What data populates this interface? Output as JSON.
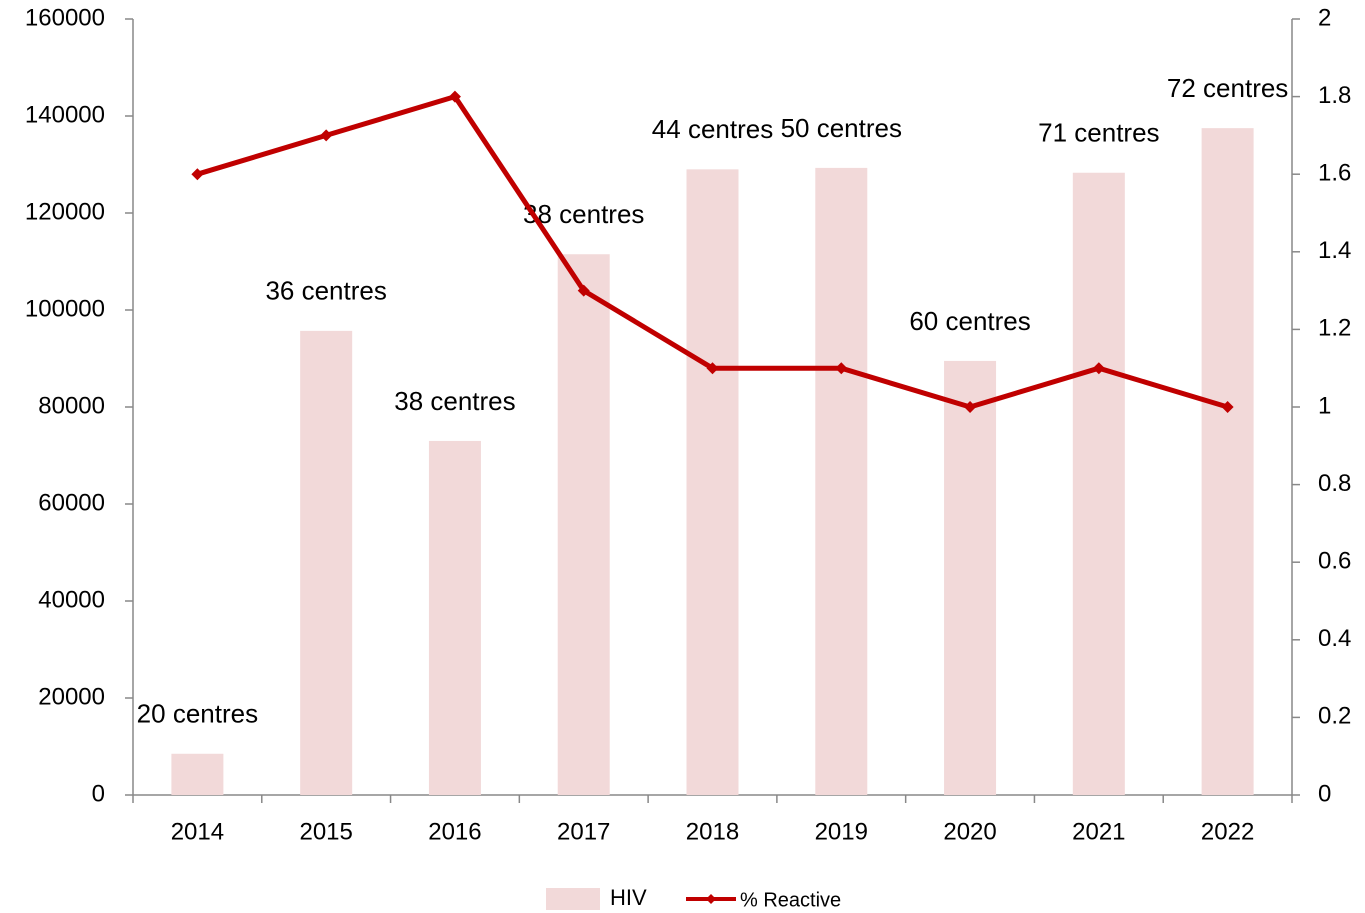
{
  "chart_data": {
    "type": "bar_line",
    "categories": [
      "2014",
      "2015",
      "2016",
      "2017",
      "2018",
      "2019",
      "2020",
      "2021",
      "2022"
    ],
    "series": [
      {
        "name": "HIV",
        "type": "bar",
        "color": "#f2d9d9",
        "values": [
          8500,
          95700,
          73000,
          111500,
          129000,
          129300,
          89500,
          128300,
          137500
        ]
      },
      {
        "name": "% Reactive",
        "type": "line",
        "axis": "y2",
        "color": "#c00000",
        "values": [
          1.6,
          1.7,
          1.8,
          1.3,
          1.1,
          1.1,
          1.0,
          1.1,
          1.0
        ]
      }
    ],
    "annotations": [
      "20 centres",
      "36 centres",
      "38 centres",
      "38 centres",
      "44 centres",
      "50 centres",
      "60 centres",
      "71 centres",
      "72 centres"
    ],
    "ylim": [
      0,
      160000
    ],
    "yticks": [
      0,
      20000,
      40000,
      60000,
      80000,
      100000,
      120000,
      140000,
      160000
    ],
    "y2lim": [
      0,
      2
    ],
    "y2ticks": [
      0,
      0.2,
      0.4,
      0.6,
      0.8,
      1,
      1.2,
      1.4,
      1.6,
      1.8,
      2
    ],
    "grid": false,
    "legend": "bottom"
  }
}
